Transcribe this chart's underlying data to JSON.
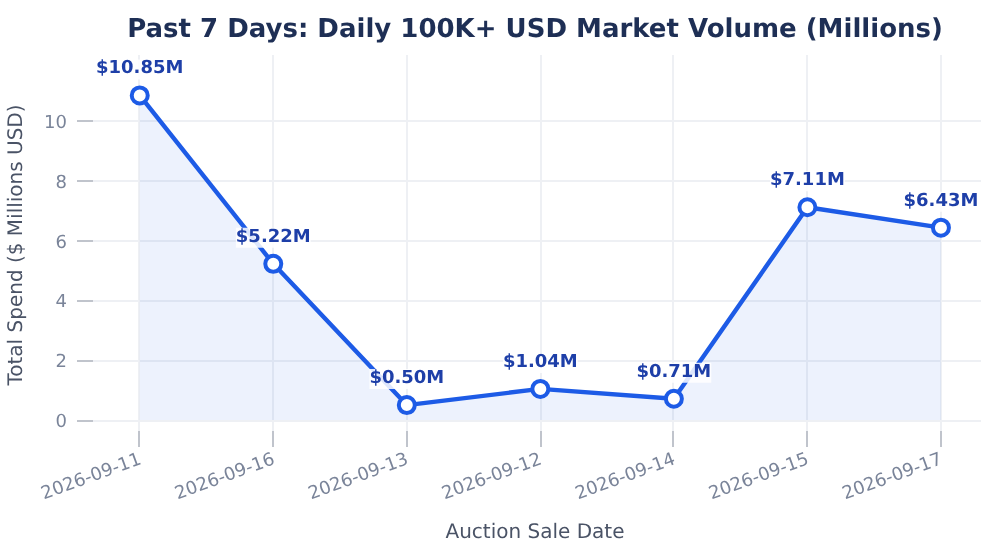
{
  "chart_data": {
    "type": "area",
    "title": "Past 7 Days: Daily 100K+ USD Market Volume (Millions)",
    "xlabel": "Auction Sale Date",
    "ylabel": "Total Spend ($ Millions USD)",
    "categories": [
      "2026-09-11",
      "2026-09-16",
      "2026-09-13",
      "2026-09-12",
      "2026-09-14",
      "2026-09-15",
      "2026-09-17"
    ],
    "series": [
      {
        "color": "#1d5be6",
        "values": [
          10.85,
          5.22,
          0.5,
          1.04,
          0.71,
          7.11,
          6.43
        ],
        "value_labels": [
          "$10.85M",
          "$5.22M",
          "$0.50M",
          "$1.04M",
          "$0.71M",
          "$7.11M",
          "$6.43M"
        ]
      }
    ],
    "ylim": [
      -0.5,
      12.2
    ],
    "yticks": [
      0,
      2,
      4,
      6,
      8,
      10
    ],
    "grid": true,
    "marker": "circle",
    "line_style": "solid"
  }
}
